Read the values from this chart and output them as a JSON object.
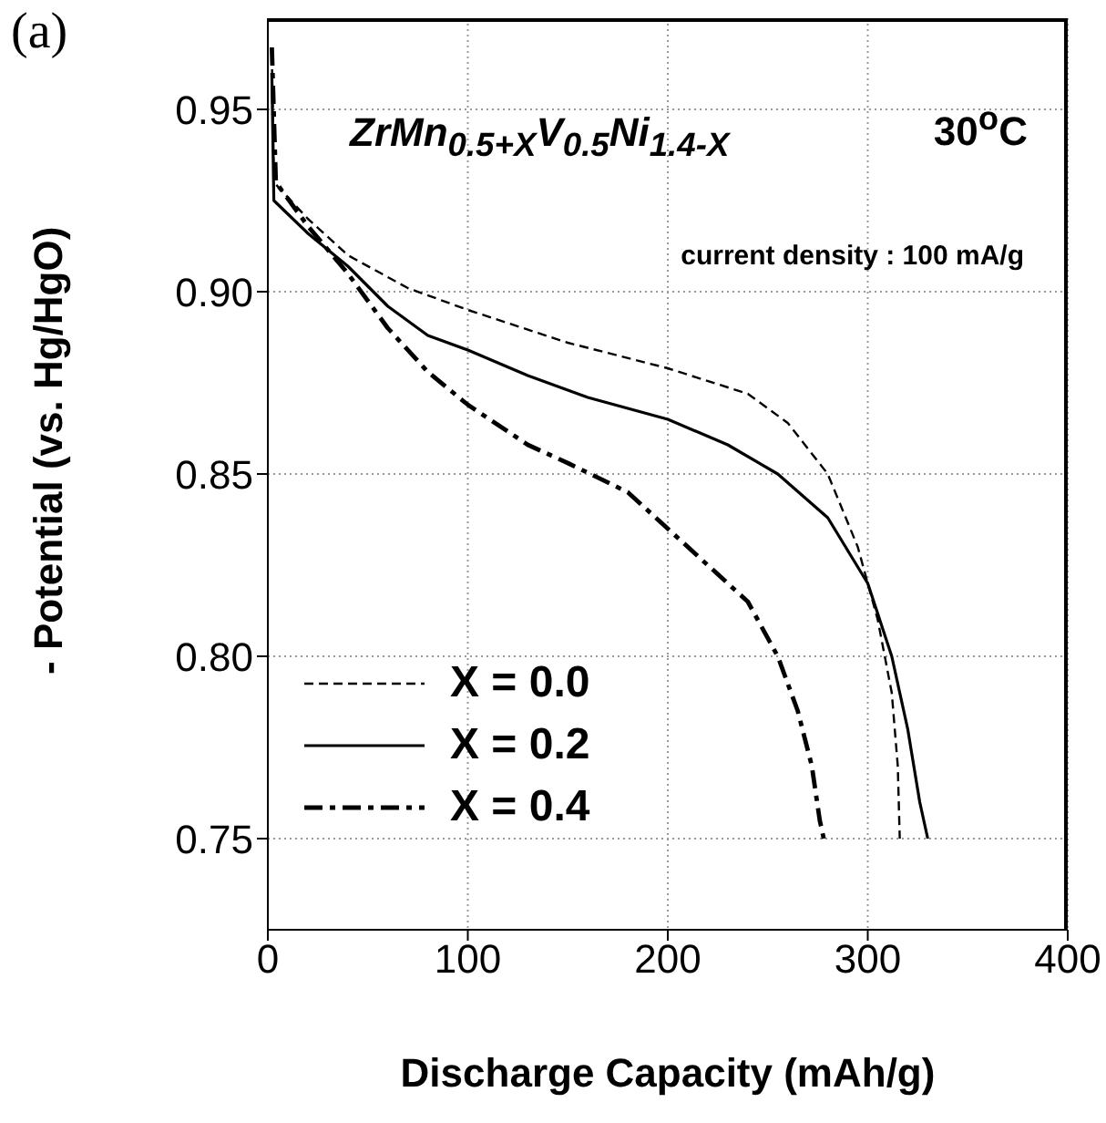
{
  "chart_data": {
    "type": "line",
    "title": "(a)",
    "xlabel": "Discharge Capacity (mAh/g)",
    "ylabel": "- Potential (vs. Hg/HgO)",
    "annotations": [
      "ZrMn$_{0.5+X}$V$_{0.5}$Ni$_{1.4-X}$",
      "30$^{o}$C",
      "current density : 100 mA/g"
    ],
    "xlim": [
      0,
      400
    ],
    "xticks": [
      0,
      100,
      200,
      300,
      400
    ],
    "ylim": [
      0.725,
      0.975
    ],
    "yticks": [
      {
        "value": 0.75,
        "label": "0.75"
      },
      {
        "value": 0.8,
        "label": "0.80"
      },
      {
        "value": 0.85,
        "label": "0.85"
      },
      {
        "value": 0.9,
        "label": "0.90"
      },
      {
        "value": 0.95,
        "label": "0.95"
      }
    ],
    "grid": true,
    "legend": "bottom left",
    "marker": "none",
    "series": [
      {
        "name": "X = 0.0",
        "color": "#000000",
        "line_style": "dashed",
        "x": [
          2,
          3,
          20,
          40,
          70,
          100,
          150,
          200,
          240,
          260,
          280,
          295,
          305,
          312,
          315,
          316
        ],
        "values": [
          0.965,
          0.93,
          0.92,
          0.91,
          0.901,
          0.895,
          0.886,
          0.879,
          0.872,
          0.864,
          0.85,
          0.83,
          0.81,
          0.79,
          0.77,
          0.75
        ]
      },
      {
        "name": "X = 0.2",
        "color": "#000000",
        "line_style": "solid",
        "x": [
          2,
          3,
          20,
          40,
          60,
          80,
          100,
          130,
          160,
          200,
          230,
          255,
          280,
          300,
          312,
          320,
          326,
          330
        ],
        "values": [
          0.96,
          0.925,
          0.916,
          0.907,
          0.896,
          0.888,
          0.884,
          0.877,
          0.871,
          0.865,
          0.858,
          0.85,
          0.838,
          0.82,
          0.8,
          0.78,
          0.76,
          0.75
        ]
      },
      {
        "name": "X = 0.4",
        "color": "#000000",
        "line_style": "dashdot",
        "x": [
          2,
          4,
          20,
          40,
          60,
          80,
          100,
          130,
          150,
          180,
          200,
          220,
          240,
          255,
          265,
          272,
          276,
          278
        ],
        "values": [
          0.967,
          0.93,
          0.918,
          0.905,
          0.89,
          0.878,
          0.869,
          0.858,
          0.853,
          0.845,
          0.835,
          0.825,
          0.815,
          0.8,
          0.785,
          0.77,
          0.755,
          0.75
        ]
      }
    ]
  }
}
